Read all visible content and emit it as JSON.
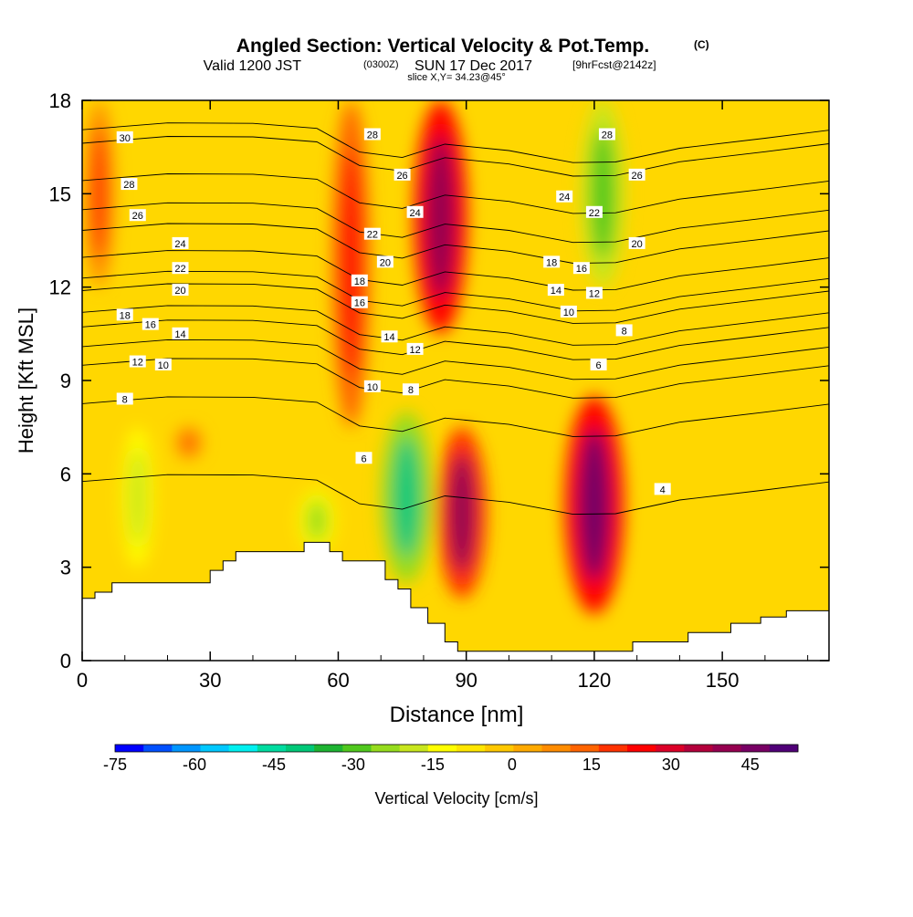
{
  "header": {
    "title": "Angled Section: Vertical Velocity & Pot.Temp.",
    "copyright": "(C)",
    "valid_prefix": "Valid 1200 JST",
    "valid_z": "(0300Z)",
    "valid_date": "SUN 17 Dec 2017",
    "forecast": "[9hrFcst@2142z]",
    "slice": "slice X,Y= 34.23@45°"
  },
  "chart_data": {
    "type": "heatmap",
    "xlabel": "Distance [nm]",
    "ylabel": "Height [Kft MSL]",
    "xlim": [
      0,
      175
    ],
    "ylim": [
      0,
      18
    ],
    "xticks": [
      0,
      30,
      60,
      90,
      120,
      150
    ],
    "yticks": [
      0,
      3,
      6,
      9,
      12,
      15,
      18
    ],
    "colorbar": {
      "label": "Vertical Velocity [cm/s]",
      "range": [
        -75,
        54
      ],
      "tick_labels": [
        "-75",
        "-60",
        "-45",
        "-30",
        "-15",
        "0",
        "15",
        "30",
        "45"
      ],
      "colors": [
        "#0000ff",
        "#0050ff",
        "#0096ff",
        "#00c8ff",
        "#00f0f0",
        "#00dca0",
        "#00c878",
        "#1eb432",
        "#50c81e",
        "#96dc1e",
        "#c8e61e",
        "#ffff00",
        "#ffe600",
        "#ffc800",
        "#ffaa00",
        "#ff8c00",
        "#ff6400",
        "#ff3200",
        "#ff0000",
        "#dc0028",
        "#b4003c",
        "#960050",
        "#780064",
        "#500078"
      ]
    },
    "velocity_features": [
      {
        "x": 84,
        "z_bottom": 10.5,
        "z_top": 18,
        "w": 42,
        "label": "strong updraft aloft"
      },
      {
        "x": 63,
        "z_bottom": 7.5,
        "z_top": 18,
        "w": 26,
        "label": "updraft"
      },
      {
        "x": 120,
        "z_bottom": 1.5,
        "z_top": 8.5,
        "w": 48,
        "label": "strong low-level updraft"
      },
      {
        "x": 89,
        "z_bottom": 2.0,
        "z_top": 7.5,
        "w": 38,
        "label": "low-level updraft"
      },
      {
        "x": 76,
        "z_bottom": 2.5,
        "z_top": 8,
        "w": -40,
        "label": "low-level downdraft"
      },
      {
        "x": 122,
        "z_bottom": 12,
        "z_top": 18,
        "w": -32,
        "label": "downdraft aloft"
      },
      {
        "x": 13,
        "z_bottom": 3,
        "z_top": 7.5,
        "w": -20,
        "label": "weak downdraft"
      },
      {
        "x": 55,
        "z_bottom": 3.5,
        "z_top": 5.5,
        "w": -25,
        "label": "weak downdraft"
      },
      {
        "x": 4,
        "z_bottom": 12,
        "z_top": 18,
        "w": 18,
        "label": "weak updraft"
      },
      {
        "x": 25,
        "z_bottom": 6.5,
        "z_top": 7.5,
        "w": 12,
        "label": "weak updraft"
      }
    ],
    "isentrope_labels": [
      {
        "x": 10,
        "z": 16.8,
        "text": "30"
      },
      {
        "x": 11,
        "z": 15.3,
        "text": "28"
      },
      {
        "x": 13,
        "z": 14.3,
        "text": "26"
      },
      {
        "x": 23,
        "z": 13.4,
        "text": "24"
      },
      {
        "x": 23,
        "z": 12.6,
        "text": "22"
      },
      {
        "x": 23,
        "z": 11.9,
        "text": "20"
      },
      {
        "x": 10,
        "z": 11.1,
        "text": "18"
      },
      {
        "x": 16,
        "z": 10.8,
        "text": "16"
      },
      {
        "x": 23,
        "z": 10.5,
        "text": "14"
      },
      {
        "x": 13,
        "z": 9.6,
        "text": "12"
      },
      {
        "x": 19,
        "z": 9.5,
        "text": "10"
      },
      {
        "x": 10,
        "z": 8.4,
        "text": "8"
      },
      {
        "x": 68,
        "z": 16.9,
        "text": "28"
      },
      {
        "x": 75,
        "z": 15.6,
        "text": "26"
      },
      {
        "x": 78,
        "z": 14.4,
        "text": "24"
      },
      {
        "x": 68,
        "z": 13.7,
        "text": "22"
      },
      {
        "x": 71,
        "z": 12.8,
        "text": "20"
      },
      {
        "x": 65,
        "z": 12.2,
        "text": "18"
      },
      {
        "x": 65,
        "z": 11.5,
        "text": "16"
      },
      {
        "x": 72,
        "z": 10.4,
        "text": "14"
      },
      {
        "x": 78,
        "z": 10.0,
        "text": "12"
      },
      {
        "x": 68,
        "z": 8.8,
        "text": "10"
      },
      {
        "x": 77,
        "z": 8.7,
        "text": "8"
      },
      {
        "x": 66,
        "z": 6.5,
        "text": "6"
      },
      {
        "x": 123,
        "z": 16.9,
        "text": "28"
      },
      {
        "x": 130,
        "z": 15.6,
        "text": "26"
      },
      {
        "x": 113,
        "z": 14.9,
        "text": "24"
      },
      {
        "x": 120,
        "z": 14.4,
        "text": "22"
      },
      {
        "x": 130,
        "z": 13.4,
        "text": "20"
      },
      {
        "x": 110,
        "z": 12.8,
        "text": "18"
      },
      {
        "x": 117,
        "z": 12.6,
        "text": "16"
      },
      {
        "x": 111,
        "z": 11.9,
        "text": "14"
      },
      {
        "x": 120,
        "z": 11.8,
        "text": "12"
      },
      {
        "x": 114,
        "z": 11.2,
        "text": "10"
      },
      {
        "x": 127,
        "z": 10.6,
        "text": "8"
      },
      {
        "x": 121,
        "z": 9.5,
        "text": "6"
      },
      {
        "x": 136,
        "z": 5.5,
        "text": "4"
      }
    ],
    "terrain": [
      [
        0,
        2.0
      ],
      [
        3,
        2.0
      ],
      [
        3,
        2.2
      ],
      [
        7,
        2.2
      ],
      [
        7,
        2.5
      ],
      [
        30,
        2.5
      ],
      [
        30,
        2.9
      ],
      [
        33,
        2.9
      ],
      [
        33,
        3.2
      ],
      [
        36,
        3.2
      ],
      [
        36,
        3.5
      ],
      [
        52,
        3.5
      ],
      [
        52,
        3.8
      ],
      [
        58,
        3.8
      ],
      [
        58,
        3.5
      ],
      [
        61,
        3.5
      ],
      [
        61,
        3.2
      ],
      [
        71,
        3.2
      ],
      [
        71,
        2.6
      ],
      [
        74,
        2.6
      ],
      [
        74,
        2.3
      ],
      [
        77,
        2.3
      ],
      [
        77,
        1.7
      ],
      [
        81,
        1.7
      ],
      [
        81,
        1.2
      ],
      [
        85,
        1.2
      ],
      [
        85,
        0.6
      ],
      [
        88,
        0.6
      ],
      [
        88,
        0.3
      ],
      [
        129,
        0.3
      ],
      [
        129,
        0.6
      ],
      [
        142,
        0.6
      ],
      [
        142,
        0.9
      ],
      [
        152,
        0.9
      ],
      [
        152,
        1.2
      ],
      [
        159,
        1.2
      ],
      [
        159,
        1.4
      ],
      [
        165,
        1.4
      ],
      [
        165,
        1.6
      ],
      [
        175,
        1.6
      ]
    ]
  }
}
